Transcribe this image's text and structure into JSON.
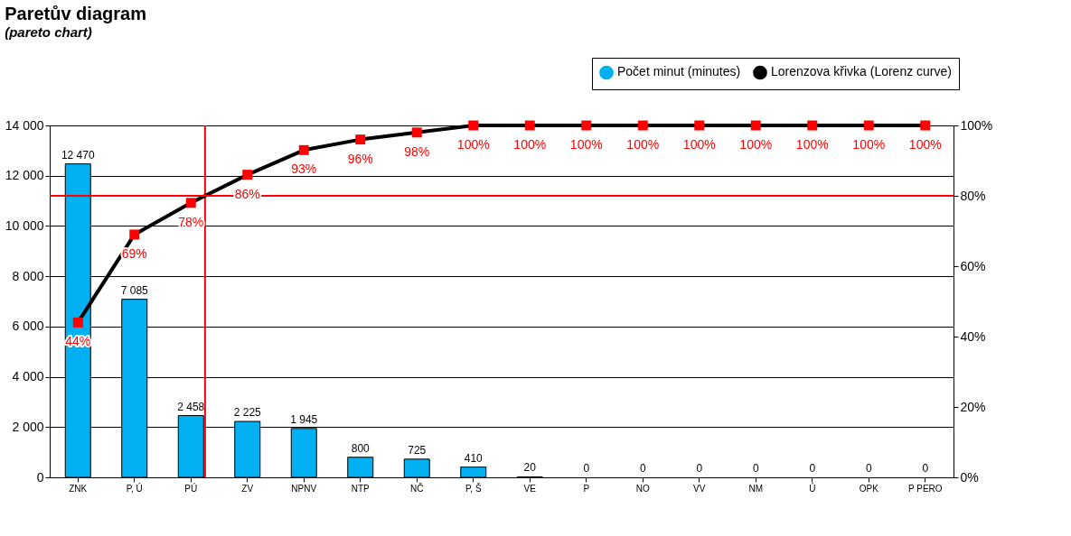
{
  "chart_data": {
    "type": "bar",
    "title": "Paretův diagram",
    "subtitle": "(pareto chart)",
    "categories": [
      "ZNK",
      "P, Ú",
      "PÚ",
      "ZV",
      "NPNV",
      "NTP",
      "NČ",
      "P, Š",
      "VE",
      "P",
      "NO",
      "VV",
      "NM",
      "Ú",
      "OPK",
      "P PERO"
    ],
    "series": [
      {
        "name": "Počet minut (minutes)",
        "color": "#00b0f0",
        "values": [
          12470,
          7085,
          2458,
          2225,
          1945,
          800,
          725,
          410,
          20,
          0,
          0,
          0,
          0,
          0,
          0,
          0
        ],
        "value_labels": [
          "12 470",
          "7 085",
          "2 458",
          "2 225",
          "1 945",
          "800",
          "725",
          "410",
          "20",
          "0",
          "0",
          "0",
          "0",
          "0",
          "0",
          "0"
        ]
      },
      {
        "name": "Lorenzova křivka (Lorenz curve)",
        "type": "line",
        "axis": "y2",
        "color": "#000000",
        "colors": [
          "#ff0000",
          "#ff0000",
          "#ff0000",
          "#ff0000",
          "#ff0000",
          "#ff0000",
          "#ff0000",
          "#ff0000",
          "#ff0000",
          "#ff0000",
          "#ff0000",
          "#ff0000",
          "#ff0000",
          "#ff0000",
          "#ff0000",
          "#ff0000"
        ],
        "marker": "square",
        "values": [
          44,
          69,
          78,
          86,
          93,
          96,
          98,
          100,
          100,
          100,
          100,
          100,
          100,
          100,
          100,
          100
        ],
        "value_labels": [
          "44%",
          "69%",
          "78%",
          "86%",
          "93%",
          "96%",
          "98%",
          "100%",
          "100%",
          "100%",
          "100%",
          "100%",
          "100%",
          "100%",
          "100%",
          "100%"
        ]
      }
    ],
    "ylim": [
      0,
      14000
    ],
    "yticks": [
      {
        "value": 0,
        "label": "0"
      },
      {
        "value": 2000,
        "label": "2 000"
      },
      {
        "value": 4000,
        "label": "4 000"
      },
      {
        "value": 6000,
        "label": "6 000"
      },
      {
        "value": 8000,
        "label": "8 000"
      },
      {
        "value": 10000,
        "label": "10 000"
      },
      {
        "value": 12000,
        "label": "12 000"
      },
      {
        "value": 14000,
        "label": "14 000"
      }
    ],
    "y2lim": [
      0,
      100
    ],
    "y2ticks": [
      {
        "value": 0,
        "label": "0%"
      },
      {
        "value": 20,
        "label": "20%"
      },
      {
        "value": 40,
        "label": "40%"
      },
      {
        "value": 60,
        "label": "60%"
      },
      {
        "value": 80,
        "label": "80%"
      },
      {
        "value": 100,
        "label": "100%"
      }
    ],
    "ref_lines": [
      {
        "axis": "y2",
        "value": 80,
        "color": "#ff0000"
      },
      {
        "axis": "x",
        "value": "PÚ",
        "color": "#ff0000"
      }
    ],
    "grid": "y",
    "legend": "top right"
  }
}
